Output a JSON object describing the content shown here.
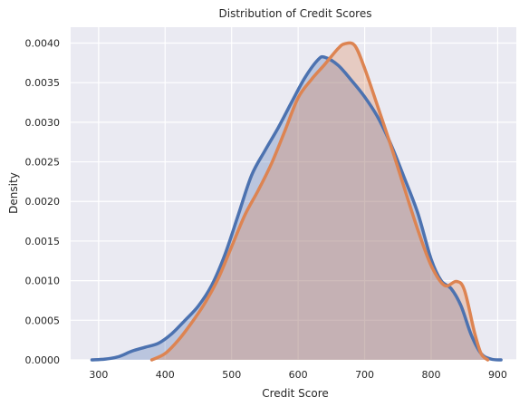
{
  "chart_data": {
    "type": "area",
    "title": "Distribution of Credit Scores",
    "xlabel": "Credit Score",
    "ylabel": "Density",
    "xlim": [
      258,
      928
    ],
    "ylim": [
      0,
      0.0042
    ],
    "xticks": [
      300,
      400,
      500,
      600,
      700,
      800,
      900
    ],
    "xtick_labels": [
      "300",
      "400",
      "500",
      "600",
      "700",
      "800",
      "900"
    ],
    "yticks": [
      0,
      0.0005,
      0.001,
      0.0015,
      0.002,
      0.0025,
      0.003,
      0.0035,
      0.004
    ],
    "ytick_labels": [
      "0.0000",
      "0.0005",
      "0.0010",
      "0.0015",
      "0.0020",
      "0.0025",
      "0.0030",
      "0.0035",
      "0.0040"
    ],
    "grid": true,
    "background": "#eaeaf2",
    "series": [
      {
        "color": "#4c72b0",
        "fill_opacity": 0.3,
        "points": [
          [
            290,
            0.0
          ],
          [
            310,
            1e-05
          ],
          [
            330,
            4e-05
          ],
          [
            350,
            0.00011
          ],
          [
            370,
            0.00016
          ],
          [
            390,
            0.00021
          ],
          [
            410,
            0.00033
          ],
          [
            430,
            0.0005
          ],
          [
            450,
            0.00068
          ],
          [
            470,
            0.00094
          ],
          [
            490,
            0.00133
          ],
          [
            510,
            0.00183
          ],
          [
            530,
            0.00233
          ],
          [
            550,
            0.00264
          ],
          [
            570,
            0.00293
          ],
          [
            590,
            0.00325
          ],
          [
            610,
            0.00356
          ],
          [
            630,
            0.00379
          ],
          [
            640,
            0.00382
          ],
          [
            660,
            0.00372
          ],
          [
            680,
            0.00353
          ],
          [
            700,
            0.00332
          ],
          [
            720,
            0.00306
          ],
          [
            740,
            0.00271
          ],
          [
            760,
            0.00229
          ],
          [
            780,
            0.00185
          ],
          [
            800,
            0.00127
          ],
          [
            815,
            0.001
          ],
          [
            830,
            0.0009
          ],
          [
            845,
            0.00068
          ],
          [
            860,
            0.00032
          ],
          [
            875,
            8e-05
          ],
          [
            890,
            1e-05
          ],
          [
            905,
            0.0
          ]
        ]
      },
      {
        "color": "#dd8452",
        "fill_opacity": 0.3,
        "points": [
          [
            380,
            0.0
          ],
          [
            400,
            8e-05
          ],
          [
            420,
            0.00025
          ],
          [
            440,
            0.00047
          ],
          [
            460,
            0.00072
          ],
          [
            480,
            0.00103
          ],
          [
            500,
            0.00143
          ],
          [
            520,
            0.00183
          ],
          [
            540,
            0.00214
          ],
          [
            560,
            0.00248
          ],
          [
            580,
            0.00289
          ],
          [
            600,
            0.00331
          ],
          [
            620,
            0.00354
          ],
          [
            640,
            0.00373
          ],
          [
            660,
            0.00393
          ],
          [
            670,
            0.00399
          ],
          [
            685,
            0.00397
          ],
          [
            700,
            0.00368
          ],
          [
            720,
            0.00319
          ],
          [
            740,
            0.00269
          ],
          [
            760,
            0.00216
          ],
          [
            780,
            0.00164
          ],
          [
            800,
            0.00119
          ],
          [
            820,
            0.00094
          ],
          [
            838,
            0.00099
          ],
          [
            850,
            0.00088
          ],
          [
            865,
            0.00035
          ],
          [
            875,
            8e-05
          ],
          [
            885,
            0.0
          ]
        ]
      }
    ]
  }
}
